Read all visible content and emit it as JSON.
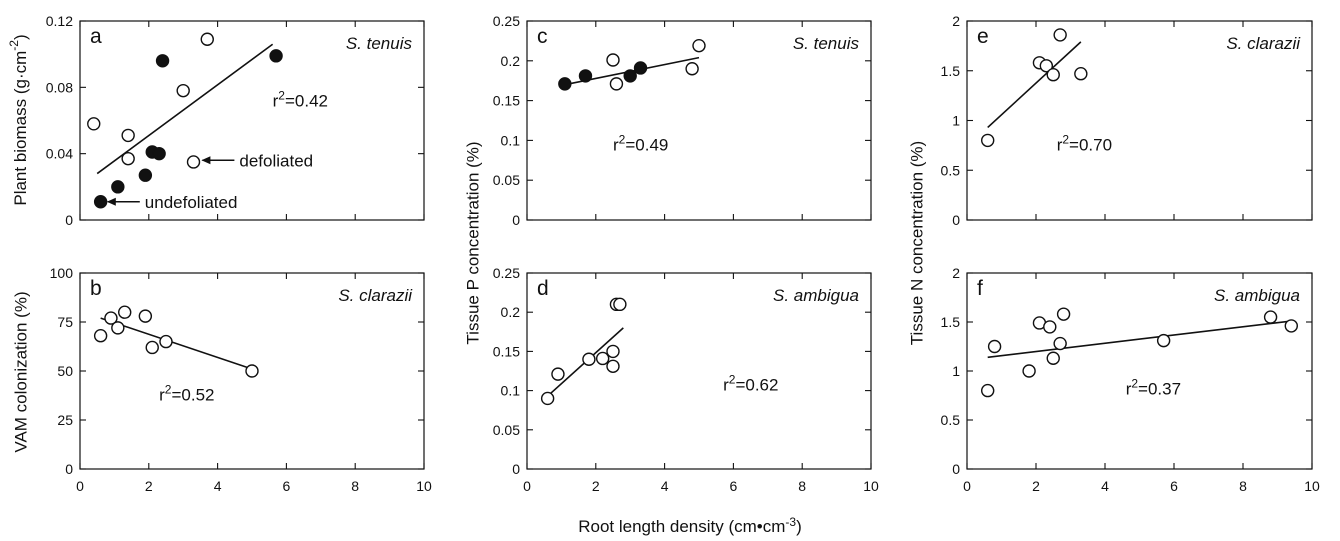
{
  "shared_xlabel": "Root length density (cm•cm-3)",
  "chart_data": [
    {
      "id": "a",
      "type": "scatter",
      "panel_label": "a",
      "species": "S. tenuis",
      "r2_label": "r2=0.42",
      "ylabel": "Plant biomass (g·cm-2)",
      "xlim": [
        0,
        10
      ],
      "ylim": [
        0,
        0.12
      ],
      "xticks": [],
      "yticks": [
        0,
        0.04,
        0.08,
        0.12
      ],
      "ytick_labels": [
        "0",
        "0.04",
        "0.08",
        "0.12"
      ],
      "series": [
        {
          "name": "defoliated",
          "marker": "open",
          "points": [
            [
              0.4,
              0.058
            ],
            [
              1.4,
              0.051
            ],
            [
              1.4,
              0.037
            ],
            [
              3.0,
              0.078
            ],
            [
              3.7,
              0.109
            ],
            [
              3.3,
              0.035
            ]
          ]
        },
        {
          "name": "undefoliated",
          "marker": "filled",
          "points": [
            [
              0.6,
              0.011
            ],
            [
              1.1,
              0.02
            ],
            [
              1.9,
              0.027
            ],
            [
              2.1,
              0.041
            ],
            [
              2.3,
              0.04
            ],
            [
              2.4,
              0.096
            ],
            [
              5.7,
              0.099
            ]
          ]
        }
      ],
      "fit": [
        [
          0.5,
          0.028
        ],
        [
          5.6,
          0.106
        ]
      ],
      "annotations": [
        {
          "text": "defoliated",
          "target": [
            3.5,
            0.036
          ]
        },
        {
          "text": "undefoliated",
          "target": [
            0.75,
            0.011
          ]
        }
      ]
    },
    {
      "id": "b",
      "type": "scatter",
      "panel_label": "b",
      "species": "S. clarazii",
      "r2_label": "r2=0.52",
      "ylabel": "VAM colonization (%)",
      "xlim": [
        0,
        10
      ],
      "ylim": [
        0,
        100
      ],
      "xticks": [
        0,
        2,
        4,
        6,
        8,
        10
      ],
      "yticks": [
        0,
        25,
        50,
        75,
        100
      ],
      "ytick_labels": [
        "0",
        "25",
        "50",
        "75",
        "100"
      ],
      "series": [
        {
          "name": "",
          "marker": "open",
          "points": [
            [
              0.6,
              68
            ],
            [
              0.9,
              77
            ],
            [
              1.1,
              72
            ],
            [
              1.3,
              80
            ],
            [
              1.9,
              78
            ],
            [
              2.1,
              62
            ],
            [
              2.5,
              65
            ],
            [
              5.0,
              50
            ]
          ]
        }
      ],
      "fit": [
        [
          0.6,
          77
        ],
        [
          5.0,
          51
        ]
      ]
    },
    {
      "id": "c",
      "type": "scatter",
      "panel_label": "c",
      "species": "S. tenuis",
      "r2_label": "r2=0.49",
      "ylabel": "",
      "xlim": [
        0,
        10
      ],
      "ylim": [
        0,
        0.25
      ],
      "xticks": [],
      "yticks": [
        0,
        0.05,
        0.1,
        0.15,
        0.2,
        0.25
      ],
      "ytick_labels": [
        "0",
        "0.05",
        "0.1",
        "0.15",
        "0.2",
        "0.25"
      ],
      "series": [
        {
          "name": "defoliated",
          "marker": "open",
          "points": [
            [
              2.5,
              0.201
            ],
            [
              2.6,
              0.171
            ],
            [
              4.8,
              0.19
            ],
            [
              5.0,
              0.219
            ]
          ]
        },
        {
          "name": "undefoliated",
          "marker": "filled",
          "points": [
            [
              1.1,
              0.171
            ],
            [
              1.7,
              0.181
            ],
            [
              3.0,
              0.181
            ],
            [
              3.3,
              0.191
            ]
          ]
        }
      ],
      "fit": [
        [
          1.1,
          0.17
        ],
        [
          5.0,
          0.204
        ]
      ]
    },
    {
      "id": "d",
      "type": "scatter",
      "panel_label": "d",
      "species": "S. ambigua",
      "r2_label": "r2=0.62",
      "ylabel": "Tissue P concentration (%)",
      "xlim": [
        0,
        10
      ],
      "ylim": [
        0,
        0.25
      ],
      "xticks": [
        0,
        2,
        4,
        6,
        8,
        10
      ],
      "yticks": [
        0,
        0.05,
        0.1,
        0.15,
        0.2,
        0.25
      ],
      "ytick_labels": [
        "0",
        "0.05",
        "0.1",
        "0.15",
        "0.2",
        "0.25"
      ],
      "series": [
        {
          "name": "",
          "marker": "open",
          "points": [
            [
              0.6,
              0.09
            ],
            [
              0.9,
              0.121
            ],
            [
              1.8,
              0.14
            ],
            [
              2.2,
              0.141
            ],
            [
              2.5,
              0.15
            ],
            [
              2.5,
              0.131
            ],
            [
              2.6,
              0.21
            ],
            [
              2.7,
              0.21
            ]
          ]
        }
      ],
      "fit": [
        [
          0.6,
          0.093
        ],
        [
          2.8,
          0.18
        ]
      ]
    },
    {
      "id": "e",
      "type": "scatter",
      "panel_label": "e",
      "species": "S. clarazii",
      "r2_label": "r2=0.70",
      "ylabel": "",
      "xlim": [
        0,
        10
      ],
      "ylim": [
        0,
        2
      ],
      "xticks": [],
      "yticks": [
        0,
        0.5,
        1,
        1.5,
        2
      ],
      "ytick_labels": [
        "0",
        "0.5",
        "1",
        "1.5",
        "2"
      ],
      "series": [
        {
          "name": "",
          "marker": "open",
          "points": [
            [
              0.6,
              0.8
            ],
            [
              2.1,
              1.58
            ],
            [
              2.3,
              1.55
            ],
            [
              2.5,
              1.46
            ],
            [
              2.7,
              1.86
            ],
            [
              3.3,
              1.47
            ]
          ]
        }
      ],
      "fit": [
        [
          0.6,
          0.93
        ],
        [
          3.3,
          1.79
        ]
      ]
    },
    {
      "id": "f",
      "type": "scatter",
      "panel_label": "f",
      "species": "S. ambigua",
      "r2_label": "r2=0.37",
      "ylabel": "Tissue N concentration (%)",
      "xlim": [
        0,
        10
      ],
      "ylim": [
        0,
        2
      ],
      "xticks": [
        0,
        2,
        4,
        6,
        8,
        10
      ],
      "yticks": [
        0,
        0.5,
        1,
        1.5,
        2
      ],
      "ytick_labels": [
        "0",
        "0.5",
        "1",
        "1.5",
        "2"
      ],
      "series": [
        {
          "name": "",
          "marker": "open",
          "points": [
            [
              0.6,
              0.8
            ],
            [
              0.8,
              1.25
            ],
            [
              1.8,
              1.0
            ],
            [
              2.1,
              1.49
            ],
            [
              2.4,
              1.45
            ],
            [
              2.5,
              1.13
            ],
            [
              2.7,
              1.28
            ],
            [
              2.8,
              1.58
            ],
            [
              5.7,
              1.31
            ],
            [
              8.8,
              1.55
            ],
            [
              9.4,
              1.46
            ]
          ]
        }
      ],
      "fit": [
        [
          0.6,
          1.14
        ],
        [
          9.4,
          1.51
        ]
      ]
    }
  ]
}
